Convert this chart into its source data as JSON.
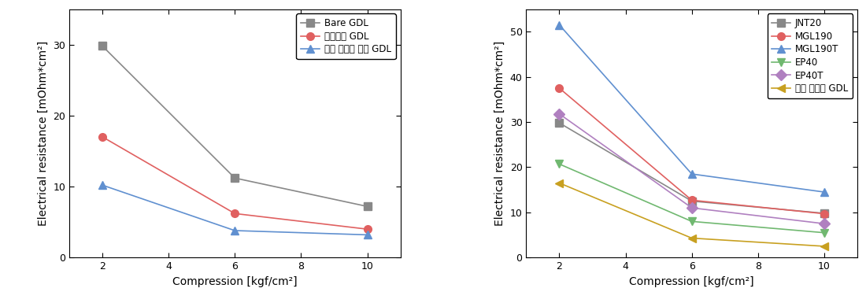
{
  "left": {
    "series": [
      {
        "label": "Bare GDL",
        "x": [
          2,
          6,
          10
        ],
        "y": [
          29.8,
          11.2,
          7.2
        ],
        "color": "#888888",
        "marker": "s",
        "linestyle": "-"
      },
      {
        "label": "니켈도금 GDL",
        "x": [
          2,
          6,
          10
        ],
        "y": [
          17.0,
          6.2,
          4.0
        ],
        "color": "#e06060",
        "marker": "o",
        "linestyle": "-"
      },
      {
        "label": "니켈 테프론 도금 GDL",
        "x": [
          2,
          6,
          10
        ],
        "y": [
          10.2,
          3.8,
          3.2
        ],
        "color": "#6090d0",
        "marker": "^",
        "linestyle": "-"
      }
    ],
    "xlabel": "Compression [kgf/cm²]",
    "ylabel": "Electrical resistance [mOhm*cm²]",
    "xlim": [
      1,
      11
    ],
    "ylim": [
      0,
      35
    ],
    "xticks": [
      2,
      4,
      6,
      8,
      10
    ],
    "yticks": [
      0,
      10,
      20,
      30
    ]
  },
  "right": {
    "series": [
      {
        "label": "JNT20",
        "x": [
          2,
          6,
          10
        ],
        "y": [
          29.8,
          12.5,
          9.8
        ],
        "color": "#888888",
        "marker": "s",
        "linestyle": "-"
      },
      {
        "label": "MGL190",
        "x": [
          2,
          6,
          10
        ],
        "y": [
          37.5,
          12.7,
          9.7
        ],
        "color": "#e06060",
        "marker": "o",
        "linestyle": "-"
      },
      {
        "label": "MGL190T",
        "x": [
          2,
          6,
          10
        ],
        "y": [
          51.5,
          18.5,
          14.5
        ],
        "color": "#6090d0",
        "marker": "^",
        "linestyle": "-"
      },
      {
        "label": "EP40",
        "x": [
          2,
          6,
          10
        ],
        "y": [
          20.7,
          8.0,
          5.5
        ],
        "color": "#70b870",
        "marker": "v",
        "linestyle": "-"
      },
      {
        "label": "EP40T",
        "x": [
          2,
          6,
          10
        ],
        "y": [
          31.8,
          11.0,
          7.5
        ],
        "color": "#b080c0",
        "marker": "D",
        "linestyle": "-"
      },
      {
        "label": "니켈 테프론 GDL",
        "x": [
          2,
          6,
          10
        ],
        "y": [
          16.5,
          4.3,
          2.5
        ],
        "color": "#c8a020",
        "marker": "<",
        "linestyle": "-"
      }
    ],
    "xlabel": "Compression [kgf/cm²]",
    "ylabel": "Electrical resistance [mOhm*cm²]",
    "xlim": [
      1,
      11
    ],
    "ylim": [
      0,
      55
    ],
    "xticks": [
      2,
      4,
      6,
      8,
      10
    ],
    "yticks": [
      0,
      10,
      20,
      30,
      40,
      50
    ]
  },
  "figure_bg": "#ffffff",
  "axes_bg": "#ffffff",
  "marker_size": 7,
  "linewidth": 1.2
}
